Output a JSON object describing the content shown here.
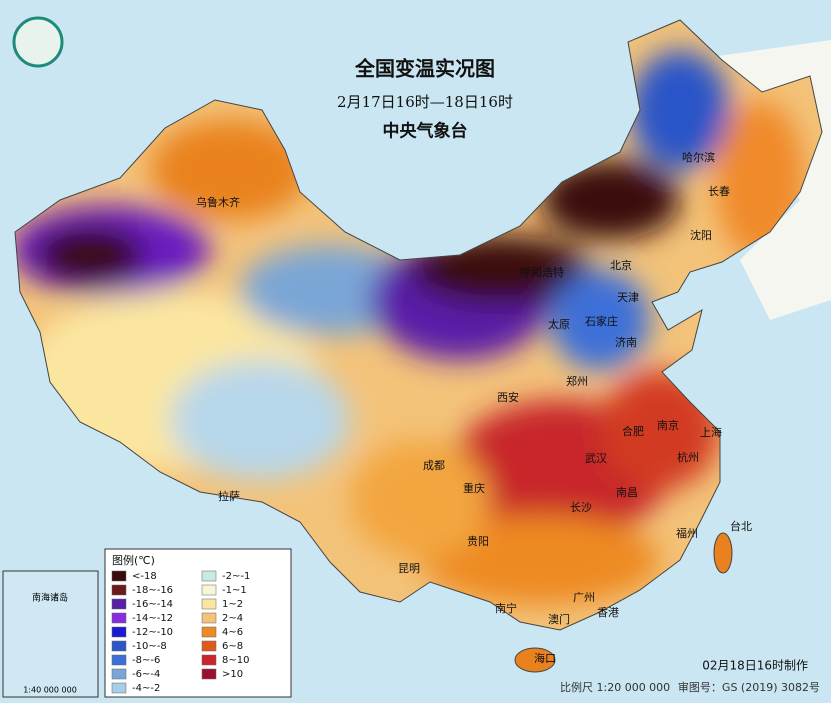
{
  "header": {
    "title": "全国变温实况图",
    "subtitle": "2月17日16时—18日16时",
    "agency": "中央气象台"
  },
  "cities": [
    "乌鲁木齐",
    "哈尔滨",
    "长春",
    "沈阳",
    "北京",
    "天津",
    "呼和浩特",
    "石家庄",
    "太原",
    "济南",
    "郑州",
    "西安",
    "合肥",
    "南京",
    "上海",
    "武汉",
    "杭州",
    "成都",
    "重庆",
    "长沙",
    "南昌",
    "拉萨",
    "贵阳",
    "昆明",
    "福州",
    "台北",
    "南宁",
    "广州",
    "香港",
    "澳门",
    "海口"
  ],
  "inset": {
    "label": "南海诸岛",
    "scale": "1:40 000 000"
  },
  "legend": {
    "title": "图例(℃)",
    "items": [
      {
        "label": "<-18",
        "color": "#3a0b0b"
      },
      {
        "label": "-18~-16",
        "color": "#6b1a1a"
      },
      {
        "label": "-16~-14",
        "color": "#5a1fa8"
      },
      {
        "label": "-14~-12",
        "color": "#8a2be2"
      },
      {
        "label": "-12~-10",
        "color": "#1a1acf"
      },
      {
        "label": "-10~-8",
        "color": "#2b55c8"
      },
      {
        "label": "-8~-6",
        "color": "#3c6fd8"
      },
      {
        "label": "-6~-4",
        "color": "#7aa6d6"
      },
      {
        "label": "-4~-2",
        "color": "#a8cde8"
      },
      {
        "label": "-2~-1",
        "color": "#c8ecdf"
      },
      {
        "label": "-1~1",
        "color": "#f6f7d8"
      },
      {
        "label": "1~2",
        "color": "#fbe6a0"
      },
      {
        "label": "2~4",
        "color": "#f3c37a"
      },
      {
        "label": "4~6",
        "color": "#ee8a22"
      },
      {
        "label": "6~8",
        "color": "#e05a1e"
      },
      {
        "label": "8~10",
        "color": "#c8262a"
      },
      {
        "label": ">10",
        "color": "#9a1030"
      }
    ]
  },
  "footer": {
    "made": "02月18日16时制作",
    "scale": "比例尺 1:20 000 000",
    "approval": "审图号：GS (2019) 3082号"
  }
}
